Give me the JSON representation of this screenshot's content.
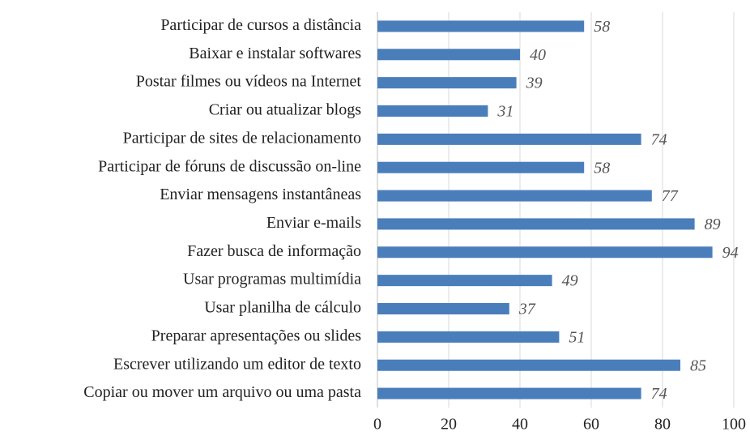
{
  "chart_data": {
    "type": "bar",
    "orientation": "horizontal",
    "categories": [
      "Participar de cursos a distância",
      "Baixar e instalar softwares",
      "Postar filmes ou vídeos na Internet",
      "Criar ou atualizar blogs",
      "Participar de sites de relacionamento",
      "Participar de fóruns de discussão on-line",
      "Enviar mensagens instantâneas",
      "Enviar e-mails",
      "Fazer busca de informação",
      "Usar programas multimídia",
      "Usar planilha de cálculo",
      "Preparar apresentações ou slides",
      "Escrever utilizando um editor de texto",
      "Copiar ou mover um arquivo ou uma pasta"
    ],
    "values": [
      58,
      40,
      39,
      31,
      74,
      58,
      77,
      89,
      94,
      49,
      37,
      51,
      85,
      74
    ],
    "color": "#4a7ebb",
    "xlim": [
      0,
      100
    ],
    "xticks": [
      0,
      20,
      40,
      60,
      80,
      100
    ],
    "grid": true
  }
}
